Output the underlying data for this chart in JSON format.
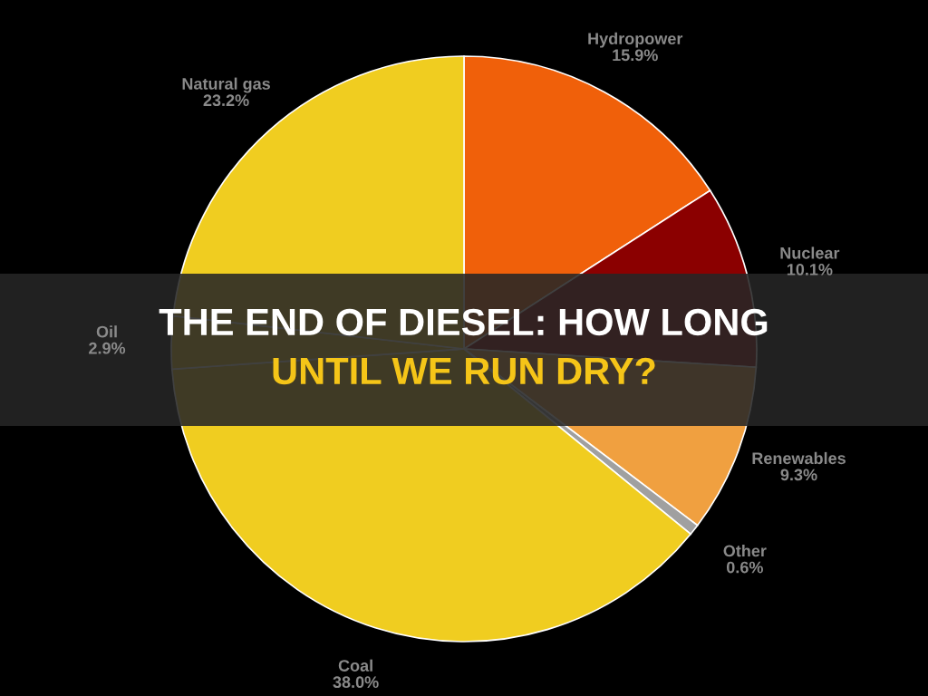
{
  "chart_data": {
    "type": "pie",
    "title": "THE END OF DIESEL: HOW LONG\nUNTIL WE RUN DRY?",
    "categories": [
      "Hydropower",
      "Nuclear",
      "Renewables",
      "Other",
      "Coal",
      "Oil",
      "Natural gas"
    ],
    "values": [
      15.9,
      10.1,
      9.3,
      0.6,
      38.0,
      2.9,
      23.2
    ],
    "value_labels": [
      "15.9%",
      "10.1%",
      "9.3%",
      "0.6%",
      "38.0%",
      "2.9%",
      "23.2%"
    ],
    "colors": [
      "#f0600a",
      "#8b0000",
      "#f0a040",
      "#a0a0a0",
      "#f0cd20",
      "#f0cd20",
      "#f0cd20"
    ],
    "legend": false
  }
}
